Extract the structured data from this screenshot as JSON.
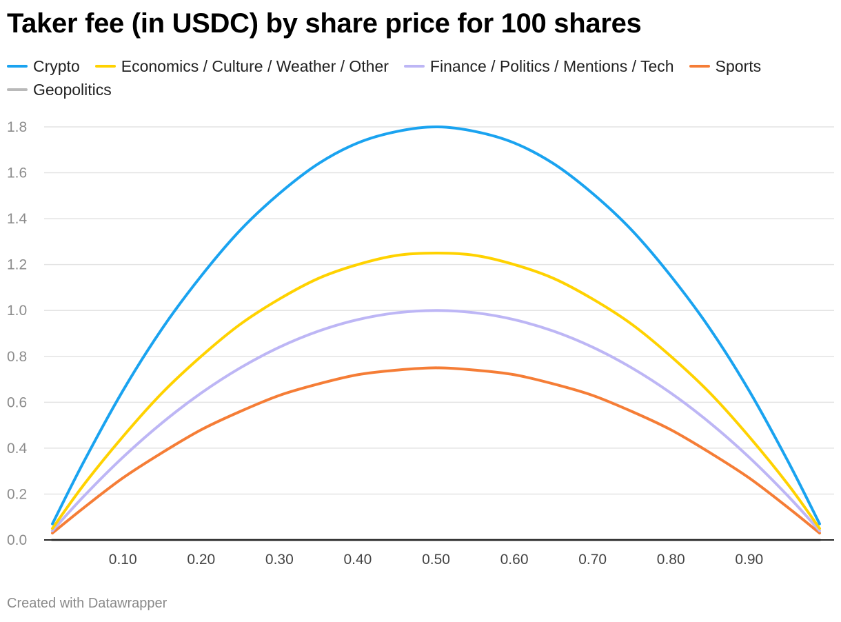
{
  "chart_data": {
    "type": "line",
    "title": "Taker fee (in USDC) by share price for 100 shares",
    "xlabel": "",
    "ylabel": "",
    "xlim": [
      0.01,
      0.99
    ],
    "ylim": [
      0,
      1.8
    ],
    "x_ticks": [
      "0.10",
      "0.20",
      "0.30",
      "0.40",
      "0.50",
      "0.60",
      "0.70",
      "0.80",
      "0.90"
    ],
    "y_ticks": [
      "0.0",
      "0.2",
      "0.4",
      "0.6",
      "0.8",
      "1.0",
      "1.2",
      "1.4",
      "1.6",
      "1.8"
    ],
    "grid": "horizontal",
    "legend_position": "top",
    "x": [
      0.01,
      0.05,
      0.1,
      0.15,
      0.2,
      0.25,
      0.3,
      0.35,
      0.4,
      0.45,
      0.5,
      0.55,
      0.6,
      0.65,
      0.7,
      0.75,
      0.8,
      0.85,
      0.9,
      0.95,
      0.99
    ],
    "series": [
      {
        "name": "Crypto",
        "color": "#1aa3f0",
        "values": [
          0.07,
          0.34,
          0.65,
          0.92,
          1.15,
          1.35,
          1.51,
          1.64,
          1.73,
          1.78,
          1.8,
          1.78,
          1.73,
          1.64,
          1.51,
          1.35,
          1.15,
          0.92,
          0.65,
          0.34,
          0.07
        ]
      },
      {
        "name": "Economics / Culture / Weather / Other",
        "color": "#ffd200",
        "values": [
          0.05,
          0.24,
          0.45,
          0.64,
          0.8,
          0.94,
          1.05,
          1.14,
          1.2,
          1.24,
          1.25,
          1.24,
          1.2,
          1.14,
          1.05,
          0.94,
          0.8,
          0.64,
          0.45,
          0.24,
          0.05
        ]
      },
      {
        "name": "Finance / Politics / Mentions / Tech",
        "color": "#bdb6f5",
        "values": [
          0.04,
          0.19,
          0.36,
          0.51,
          0.64,
          0.75,
          0.84,
          0.91,
          0.96,
          0.99,
          1.0,
          0.99,
          0.96,
          0.91,
          0.84,
          0.75,
          0.64,
          0.51,
          0.36,
          0.19,
          0.04
        ]
      },
      {
        "name": "Sports",
        "color": "#f57d36",
        "values": [
          0.03,
          0.14,
          0.27,
          0.38,
          0.48,
          0.56,
          0.63,
          0.68,
          0.72,
          0.74,
          0.75,
          0.74,
          0.72,
          0.68,
          0.63,
          0.56,
          0.48,
          0.38,
          0.27,
          0.14,
          0.03
        ]
      },
      {
        "name": "Geopolitics",
        "color": "#b9b9b9",
        "values": [
          0,
          0,
          0,
          0,
          0,
          0,
          0,
          0,
          0,
          0,
          0,
          0,
          0,
          0,
          0,
          0,
          0,
          0,
          0,
          0,
          0
        ]
      }
    ]
  },
  "footer": {
    "credit": "Created with Datawrapper"
  }
}
